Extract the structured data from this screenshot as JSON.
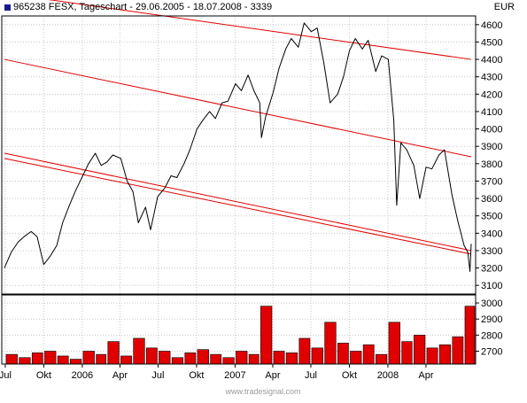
{
  "header": {
    "title": "965238  FESX, Tageschart - 29.06.2005 - 18.07.2008 - 3339",
    "currency": "EUR",
    "watermark": "www.tradesignal.com"
  },
  "colors": {
    "price_line": "#000000",
    "channel_lines": "#e00000",
    "volume_bars": "#e00000",
    "volume_bar_edges": "#000000",
    "grid": "#c8c8c8",
    "marker": "#1a1a8c"
  },
  "chart_data": [
    {
      "type": "line",
      "title": "965238  FESX, Tageschart - 29.06.2005 - 18.07.2008 - 3339",
      "series": [
        {
          "name": "",
          "x": [
            "2005-06-29",
            "2005-07-15",
            "2005-08-01",
            "2005-08-15",
            "2005-09-01",
            "2005-09-15",
            "2005-10-01",
            "2005-10-17",
            "2005-11-01",
            "2005-11-15",
            "2005-12-01",
            "2005-12-15",
            "2006-01-02",
            "2006-01-16",
            "2006-02-01",
            "2006-02-15",
            "2006-03-01",
            "2006-03-15",
            "2006-04-03",
            "2006-04-18",
            "2006-05-02",
            "2006-05-15",
            "2006-06-01",
            "2006-06-13",
            "2006-06-30",
            "2006-07-17",
            "2006-08-01",
            "2006-08-15",
            "2006-09-01",
            "2006-09-15",
            "2006-10-02",
            "2006-10-16",
            "2006-11-01",
            "2006-11-15",
            "2006-12-01",
            "2006-12-15",
            "2007-01-02",
            "2007-01-16",
            "2007-02-01",
            "2007-02-15",
            "2007-03-01",
            "2007-03-05",
            "2007-03-15",
            "2007-04-02",
            "2007-04-16",
            "2007-05-02",
            "2007-05-15",
            "2007-06-01",
            "2007-06-15",
            "2007-07-02",
            "2007-07-16",
            "2007-08-01",
            "2007-08-16",
            "2007-09-03",
            "2007-09-17",
            "2007-10-01",
            "2007-10-15",
            "2007-11-01",
            "2007-11-15",
            "2007-12-03",
            "2007-12-17",
            "2008-01-02",
            "2008-01-15",
            "2008-01-22",
            "2008-02-01",
            "2008-02-15",
            "2008-03-03",
            "2008-03-17",
            "2008-04-01",
            "2008-04-15",
            "2008-05-02",
            "2008-05-15",
            "2008-06-02",
            "2008-06-16",
            "2008-07-01",
            "2008-07-10",
            "2008-07-15",
            "2008-07-18"
          ],
          "values": [
            3200,
            3290,
            3350,
            3380,
            3410,
            3380,
            3220,
            3270,
            3330,
            3460,
            3560,
            3640,
            3730,
            3800,
            3860,
            3790,
            3810,
            3850,
            3830,
            3700,
            3640,
            3460,
            3550,
            3420,
            3610,
            3660,
            3730,
            3720,
            3800,
            3880,
            4000,
            4050,
            4100,
            4060,
            4150,
            4160,
            4260,
            4220,
            4310,
            4220,
            4150,
            3950,
            4070,
            4210,
            4350,
            4460,
            4520,
            4470,
            4610,
            4560,
            4580,
            4380,
            4150,
            4200,
            4300,
            4450,
            4520,
            4460,
            4510,
            4330,
            4420,
            4400,
            4050,
            3560,
            3920,
            3880,
            3790,
            3600,
            3780,
            3770,
            3850,
            3880,
            3620,
            3470,
            3330,
            3290,
            3180,
            3339
          ]
        }
      ],
      "ylim": [
        3050,
        4650
      ],
      "yticks": [
        3100,
        3200,
        3300,
        3400,
        3500,
        3600,
        3700,
        3800,
        3900,
        4000,
        4100,
        4200,
        4300,
        4400,
        4500,
        4600
      ],
      "xtick_labels": [
        "Jul",
        "Okt",
        "2006",
        "Apr",
        "Jul",
        "Okt",
        "2007",
        "Apr",
        "Jul",
        "Okt",
        "2008",
        "Apr"
      ],
      "xtick_dates": [
        "2005-07-01",
        "2005-10-01",
        "2006-01-01",
        "2006-04-01",
        "2006-07-01",
        "2006-10-01",
        "2007-01-01",
        "2007-04-01",
        "2007-07-01",
        "2007-10-01",
        "2008-01-01",
        "2008-04-01"
      ],
      "y_axis_position": "right",
      "grid": true,
      "annotations": [
        {
          "type": "trendline",
          "from": {
            "x": "2005-06-29",
            "y": 4780
          },
          "to": {
            "x": "2008-07-18",
            "y": 4400
          }
        },
        {
          "type": "trendline",
          "from": {
            "x": "2005-06-29",
            "y": 4400
          },
          "to": {
            "x": "2008-07-18",
            "y": 3840
          }
        },
        {
          "type": "trendline",
          "from": {
            "x": "2005-06-29",
            "y": 3860
          },
          "to": {
            "x": "2008-07-18",
            "y": 3300
          }
        },
        {
          "type": "trendline",
          "from": {
            "x": "2005-06-29",
            "y": 3830
          },
          "to": {
            "x": "2008-07-18",
            "y": 3280
          }
        }
      ]
    },
    {
      "type": "bar",
      "series": [
        {
          "name": "",
          "x": [
            "2005-07",
            "2005-08",
            "2005-09",
            "2005-10",
            "2005-11",
            "2005-12",
            "2006-01",
            "2006-02",
            "2006-03",
            "2006-04",
            "2006-05",
            "2006-06",
            "2006-07",
            "2006-08",
            "2006-09",
            "2006-10",
            "2006-11",
            "2006-12",
            "2007-01",
            "2007-02",
            "2007-03",
            "2007-04",
            "2007-05",
            "2007-06",
            "2007-07",
            "2007-08",
            "2007-09",
            "2007-10",
            "2007-11",
            "2007-12",
            "2008-01",
            "2008-02",
            "2008-03",
            "2008-04",
            "2008-05",
            "2008-06",
            "2008-07"
          ],
          "values": [
            2680,
            2660,
            2690,
            2700,
            2670,
            2650,
            2700,
            2680,
            2760,
            2670,
            2780,
            2720,
            2700,
            2660,
            2690,
            2710,
            2680,
            2660,
            2700,
            2680,
            2980,
            2700,
            2690,
            2780,
            2720,
            2880,
            2750,
            2700,
            2740,
            2680,
            2880,
            2760,
            2800,
            2720,
            2740,
            2790,
            2980
          ]
        }
      ],
      "ylim": [
        2620,
        3050
      ],
      "yticks": [
        2700,
        2800,
        2900,
        3000
      ],
      "y_axis_position": "right"
    }
  ]
}
